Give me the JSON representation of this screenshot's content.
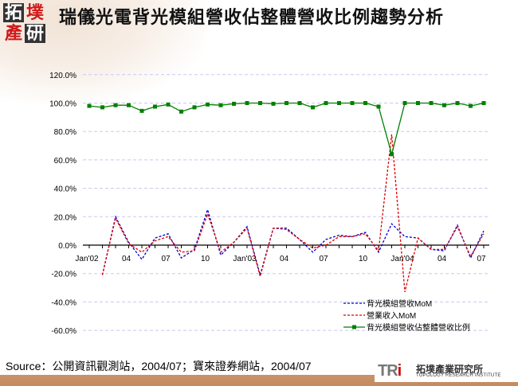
{
  "header": {
    "logo_chars": [
      "拓",
      "墣",
      "產",
      "研"
    ],
    "title": "瑞儀光電背光模組營收佔整體營收比例趨勢分析"
  },
  "footer": {
    "source": "Source：公開資訊觀測站，2004/07；寶來證券網站，2004/07",
    "brand_abbr": "TRI",
    "brand_cn": "拓墣產業研究所",
    "brand_en": "TOPOLOGY RESEARCH INSTITUTE"
  },
  "chart_data": {
    "type": "line",
    "title": "瑞儀光電背光模組營收佔整體營收比例趨勢分析",
    "xlabel": "",
    "ylabel": "",
    "ylim": [
      -60,
      120
    ],
    "y_ticks": [
      "120.0%",
      "100.0%",
      "80.0%",
      "60.0%",
      "40.0%",
      "20.0%",
      "0.0%",
      "-20.0%",
      "-40.0%",
      "-60.0%"
    ],
    "x_tick_labels": [
      "Jan'02",
      "04",
      "07",
      "10",
      "Jan'03",
      "04",
      "07",
      "10",
      "Jan'04",
      "04",
      "07"
    ],
    "grid": "horizontal dashed",
    "legend_position": "bottom-right inside",
    "x": [
      "2002-01",
      "2002-02",
      "2002-03",
      "2002-04",
      "2002-05",
      "2002-06",
      "2002-07",
      "2002-08",
      "2002-09",
      "2002-10",
      "2002-11",
      "2002-12",
      "2003-01",
      "2003-02",
      "2003-03",
      "2003-04",
      "2003-05",
      "2003-06",
      "2003-07",
      "2003-08",
      "2003-09",
      "2003-10",
      "2003-11",
      "2003-12",
      "2004-01",
      "2004-02",
      "2004-03",
      "2004-04",
      "2004-05",
      "2004-06",
      "2004-07"
    ],
    "series": [
      {
        "name": "背光模組營收MoM",
        "color": "#0000cc",
        "style": "dashed",
        "values": [
          null,
          -21,
          20,
          2,
          -10,
          5,
          8,
          -9,
          -3,
          25,
          -7,
          2,
          13,
          -21,
          12,
          12,
          4,
          -5,
          4,
          7,
          6,
          9,
          -5,
          15,
          6,
          5,
          -3,
          -4,
          14,
          -9,
          10
        ]
      },
      {
        "name": "營業收入MoM",
        "color": "#dd0000",
        "style": "dashed",
        "values": [
          null,
          -21,
          19,
          1,
          -5,
          3,
          6,
          -5,
          -4,
          22,
          -5,
          2,
          12,
          -22,
          12,
          11,
          4,
          -2,
          0,
          6,
          6,
          8,
          -4,
          78,
          -33,
          5,
          -3,
          -3,
          13,
          -8,
          8
        ]
      },
      {
        "name": "背光模組營收佔整體營收比例",
        "color": "#008000",
        "style": "solid-square-markers",
        "values": [
          98,
          97,
          98.5,
          98.5,
          94.5,
          97.5,
          99,
          94,
          97,
          99,
          98.5,
          99.5,
          100,
          100,
          99.5,
          100,
          100,
          97,
          100,
          100,
          100,
          100,
          97.5,
          64,
          100,
          100,
          100,
          98.5,
          100,
          98,
          100
        ]
      }
    ]
  }
}
